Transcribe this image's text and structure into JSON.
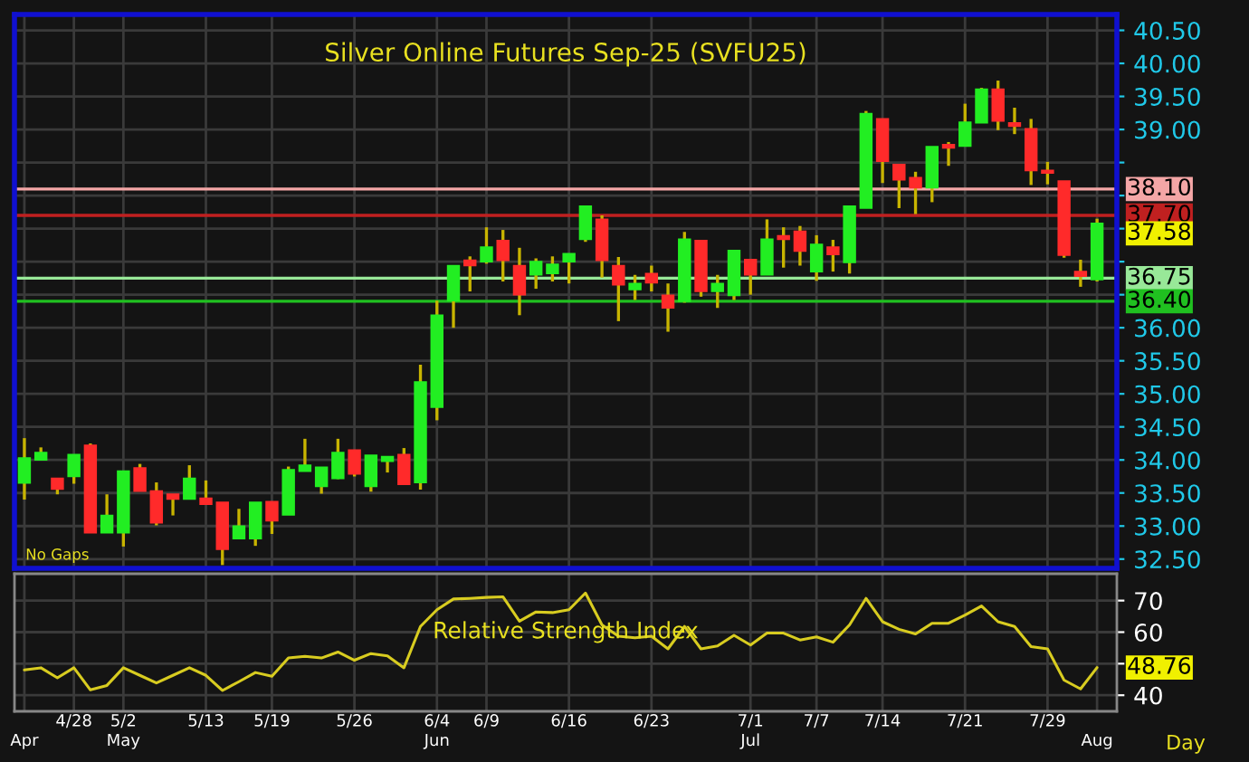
{
  "chart_data": [
    {
      "type": "candlestick",
      "title": "Silver Online Futures Sep-25 (SVFU25)",
      "categories": [
        null,
        null,
        null,
        null,
        null,
        null,
        null,
        null,
        null,
        null,
        null,
        null,
        null,
        null,
        null,
        null,
        null,
        null,
        null,
        null,
        null,
        null,
        null,
        null,
        null,
        null,
        null,
        null,
        null,
        null,
        null,
        null,
        null,
        null,
        null,
        null,
        null,
        null,
        null,
        null,
        null,
        null,
        null,
        null,
        null,
        null,
        null,
        null,
        null,
        null,
        null,
        null,
        null,
        null,
        null,
        null,
        null,
        null,
        null,
        null,
        null,
        null,
        null,
        null,
        null,
        null
      ],
      "ohlc": [
        [
          33.65,
          34.33,
          33.4,
          34.03
        ],
        [
          34.0,
          34.19,
          34.0,
          34.11
        ],
        [
          33.72,
          33.72,
          33.48,
          33.56
        ],
        [
          33.75,
          34.08,
          33.64,
          34.08
        ],
        [
          34.22,
          34.25,
          32.9,
          32.9
        ],
        [
          32.9,
          33.48,
          32.9,
          33.16
        ],
        [
          32.9,
          33.83,
          32.69,
          33.83
        ],
        [
          33.88,
          33.94,
          33.53,
          33.53
        ],
        [
          33.53,
          33.66,
          33.01,
          33.05
        ],
        [
          33.48,
          33.48,
          33.16,
          33.41
        ],
        [
          33.41,
          33.92,
          33.41,
          33.72
        ],
        [
          33.42,
          33.69,
          33.33,
          33.33
        ],
        [
          33.36,
          33.36,
          32.41,
          32.65
        ],
        [
          32.81,
          33.26,
          32.81,
          33.0
        ],
        [
          32.81,
          33.36,
          32.7,
          33.36
        ],
        [
          33.37,
          33.37,
          32.88,
          33.08
        ],
        [
          33.17,
          33.9,
          33.17,
          33.85
        ],
        [
          33.83,
          34.32,
          33.83,
          33.92
        ],
        [
          33.6,
          33.89,
          33.49,
          33.89
        ],
        [
          33.72,
          34.32,
          33.71,
          34.11
        ],
        [
          34.15,
          34.15,
          33.75,
          33.79
        ],
        [
          33.6,
          34.07,
          33.52,
          34.07
        ],
        [
          33.98,
          34.05,
          33.81,
          34.05
        ],
        [
          34.08,
          34.18,
          33.63,
          33.63
        ],
        [
          33.66,
          35.44,
          33.55,
          35.18
        ],
        [
          34.8,
          36.41,
          34.6,
          36.19
        ],
        [
          36.41,
          36.94,
          36.0,
          36.94
        ],
        [
          37.02,
          37.08,
          36.55,
          36.94
        ],
        [
          37.0,
          37.52,
          36.97,
          37.22
        ],
        [
          37.32,
          37.48,
          36.7,
          37.02
        ],
        [
          36.94,
          37.21,
          36.19,
          36.5
        ],
        [
          36.8,
          37.05,
          36.59,
          37.0
        ],
        [
          36.82,
          37.08,
          36.7,
          36.96
        ],
        [
          37.0,
          37.12,
          36.67,
          37.12
        ],
        [
          37.34,
          37.84,
          37.3,
          37.84
        ],
        [
          37.64,
          37.7,
          36.76,
          37.02
        ],
        [
          36.94,
          37.07,
          36.1,
          36.65
        ],
        [
          36.58,
          36.8,
          36.42,
          36.67
        ],
        [
          36.82,
          36.94,
          36.55,
          36.68
        ],
        [
          36.49,
          36.67,
          35.94,
          36.3
        ],
        [
          36.4,
          37.45,
          36.38,
          37.34
        ],
        [
          37.32,
          37.32,
          36.47,
          36.55
        ],
        [
          36.55,
          36.8,
          36.3,
          36.67
        ],
        [
          36.49,
          37.17,
          36.42,
          37.17
        ],
        [
          37.03,
          37.03,
          36.5,
          36.8
        ],
        [
          36.8,
          37.64,
          36.8,
          37.34
        ],
        [
          37.39,
          37.52,
          36.91,
          37.34
        ],
        [
          37.46,
          37.54,
          36.94,
          37.16
        ],
        [
          36.85,
          37.4,
          36.71,
          37.26
        ],
        [
          37.22,
          37.33,
          36.85,
          37.11
        ],
        [
          36.99,
          37.84,
          36.82,
          37.84
        ],
        [
          37.81,
          39.28,
          37.81,
          39.24
        ],
        [
          39.16,
          39.16,
          38.19,
          38.52
        ],
        [
          38.47,
          38.47,
          37.81,
          38.24
        ],
        [
          38.27,
          38.36,
          37.72,
          38.12
        ],
        [
          38.12,
          38.74,
          37.9,
          38.74
        ],
        [
          38.77,
          38.81,
          38.45,
          38.72
        ],
        [
          38.75,
          39.39,
          38.75,
          39.11
        ],
        [
          39.1,
          39.63,
          39.1,
          39.61
        ],
        [
          39.61,
          39.74,
          38.99,
          39.13
        ],
        [
          39.1,
          39.33,
          38.93,
          39.05
        ],
        [
          39.01,
          39.16,
          38.16,
          38.38
        ],
        [
          38.38,
          38.51,
          38.17,
          38.34
        ],
        [
          38.22,
          38.22,
          37.06,
          37.1
        ],
        [
          36.85,
          37.03,
          36.62,
          36.78
        ],
        [
          36.73,
          37.65,
          36.7,
          37.58
        ]
      ],
      "color": "#c8b400",
      "colors": [
        "#22ee22",
        "#22ee22",
        "#ff2a2a",
        "#22ee22",
        "#ff2a2a",
        "#22ee22",
        "#22ee22",
        "#ff2a2a",
        "#ff2a2a",
        "#ff2a2a",
        "#22ee22",
        "#ff2a2a",
        "#ff2a2a",
        "#22ee22",
        "#22ee22",
        "#ff2a2a",
        "#22ee22",
        "#22ee22",
        "#22ee22",
        "#22ee22",
        "#ff2a2a",
        "#22ee22",
        "#22ee22",
        "#ff2a2a",
        "#22ee22",
        "#22ee22",
        "#22ee22",
        "#ff2a2a",
        "#22ee22",
        "#ff2a2a",
        "#ff2a2a",
        "#22ee22",
        "#22ee22",
        "#22ee22",
        "#22ee22",
        "#ff2a2a",
        "#ff2a2a",
        "#22ee22",
        "#ff2a2a",
        "#ff2a2a",
        "#22ee22",
        "#ff2a2a",
        "#22ee22",
        "#22ee22",
        "#ff2a2a",
        "#22ee22",
        "#ff2a2a",
        "#ff2a2a",
        "#22ee22",
        "#ff2a2a",
        "#22ee22",
        "#22ee22",
        "#ff2a2a",
        "#ff2a2a",
        "#ff2a2a",
        "#22ee22",
        "#ff2a2a",
        "#22ee22",
        "#22ee22",
        "#ff2a2a",
        "#ff2a2a",
        "#ff2a2a",
        "#ff2a2a",
        "#ff2a2a",
        "#ff2a2a",
        "#22ee22"
      ],
      "ylim": [
        32.36,
        40.74
      ],
      "yticks": [
        {
          "value": 32.5,
          "label": "32.50"
        },
        {
          "value": 33.0,
          "label": "33.00"
        },
        {
          "value": 33.5,
          "label": "33.50"
        },
        {
          "value": 34.0,
          "label": "34.00"
        },
        {
          "value": 34.5,
          "label": "34.50"
        },
        {
          "value": 35.0,
          "label": "35.00"
        },
        {
          "value": 35.5,
          "label": "35.50"
        },
        {
          "value": 36.0,
          "label": "36.00"
        },
        {
          "value": 36.5,
          "label": null
        },
        {
          "value": 37.0,
          "label": null
        },
        {
          "value": 37.5,
          "label": null
        },
        {
          "value": 38.0,
          "label": null
        },
        {
          "value": 38.5,
          "label": null
        },
        {
          "value": 39.0,
          "label": "39.00"
        },
        {
          "value": 39.5,
          "label": "39.50"
        },
        {
          "value": 40.0,
          "label": "40.00"
        },
        {
          "value": 40.5,
          "label": "40.50"
        }
      ],
      "ref_lines": [
        {
          "axis": "y",
          "value": 38.1,
          "label": "38.10",
          "color": "#f4a6a6"
        },
        {
          "axis": "y",
          "value": 37.7,
          "label": "37.70",
          "color": "#c02020"
        },
        {
          "axis": "y",
          "value": 36.75,
          "label": "36.75",
          "color": "#98e898"
        },
        {
          "axis": "y",
          "value": 36.4,
          "label": "36.40",
          "color": "#20c020"
        }
      ],
      "annotations": [
        "37.58",
        "No Gaps"
      ],
      "grid": true,
      "tick_labels": "y"
    },
    {
      "type": "line",
      "title": "Relative Strength Index",
      "categories": [
        "\nApr",
        null,
        null,
        "4/28",
        null,
        null,
        "5/2\nMay",
        null,
        null,
        null,
        null,
        "5/13",
        null,
        null,
        null,
        "5/19",
        null,
        null,
        null,
        null,
        "5/26",
        null,
        null,
        null,
        null,
        "6/4\nJun",
        null,
        null,
        "6/9",
        null,
        null,
        null,
        null,
        "6/16",
        null,
        null,
        null,
        null,
        "6/23",
        null,
        null,
        null,
        null,
        null,
        "7/1\nJul",
        null,
        null,
        null,
        "7/7",
        null,
        null,
        null,
        "7/14",
        null,
        null,
        null,
        null,
        "7/21",
        null,
        null,
        null,
        null,
        "7/29",
        null,
        null,
        "\nAug"
      ],
      "series": [
        {
          "color": "#d8cc20",
          "values": [
            48.0,
            48.7,
            45.5,
            48.7,
            41.7,
            43.1,
            48.7,
            46.3,
            43.9,
            46.3,
            48.7,
            46.3,
            41.5,
            44.3,
            47.2,
            46.0,
            51.8,
            52.3,
            51.8,
            53.7,
            51.1,
            53.2,
            52.5,
            48.7,
            61.8,
            67.1,
            70.5,
            70.7,
            71.0,
            71.2,
            63.5,
            66.4,
            66.2,
            67.1,
            72.4,
            62.3,
            58.7,
            58.2,
            58.7,
            54.7,
            61.8,
            54.7,
            55.6,
            59.0,
            55.9,
            59.7,
            59.7,
            57.5,
            58.5,
            56.8,
            62.3,
            70.7,
            63.3,
            60.9,
            59.4,
            62.8,
            62.8,
            65.4,
            68.3,
            63.3,
            61.8,
            55.4,
            54.7,
            44.8,
            42.0,
            48.76
          ]
        }
      ],
      "ylim": [
        34.9,
        78.5
      ],
      "yticks": [
        40,
        {
          "value": 50,
          "label": null
        },
        60,
        70
      ],
      "annotations": [
        "48.76",
        "Day"
      ],
      "grid": true
    }
  ]
}
